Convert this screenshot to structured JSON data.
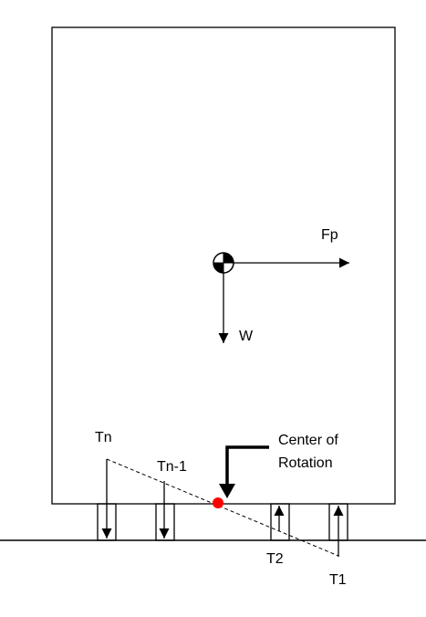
{
  "labels": {
    "fp": "Fp",
    "w": "W",
    "tn": "Tn",
    "tn_minus_1": "Tn-1",
    "center_line1": "Center of",
    "center_line2": "Rotation",
    "t2": "T2",
    "t1": "T1"
  },
  "colors": {
    "stroke": "#000000",
    "center_of_rotation": "#ff0000",
    "background": "#ffffff"
  },
  "icons": {
    "center_of_gravity": "center-of-gravity-symbol"
  }
}
